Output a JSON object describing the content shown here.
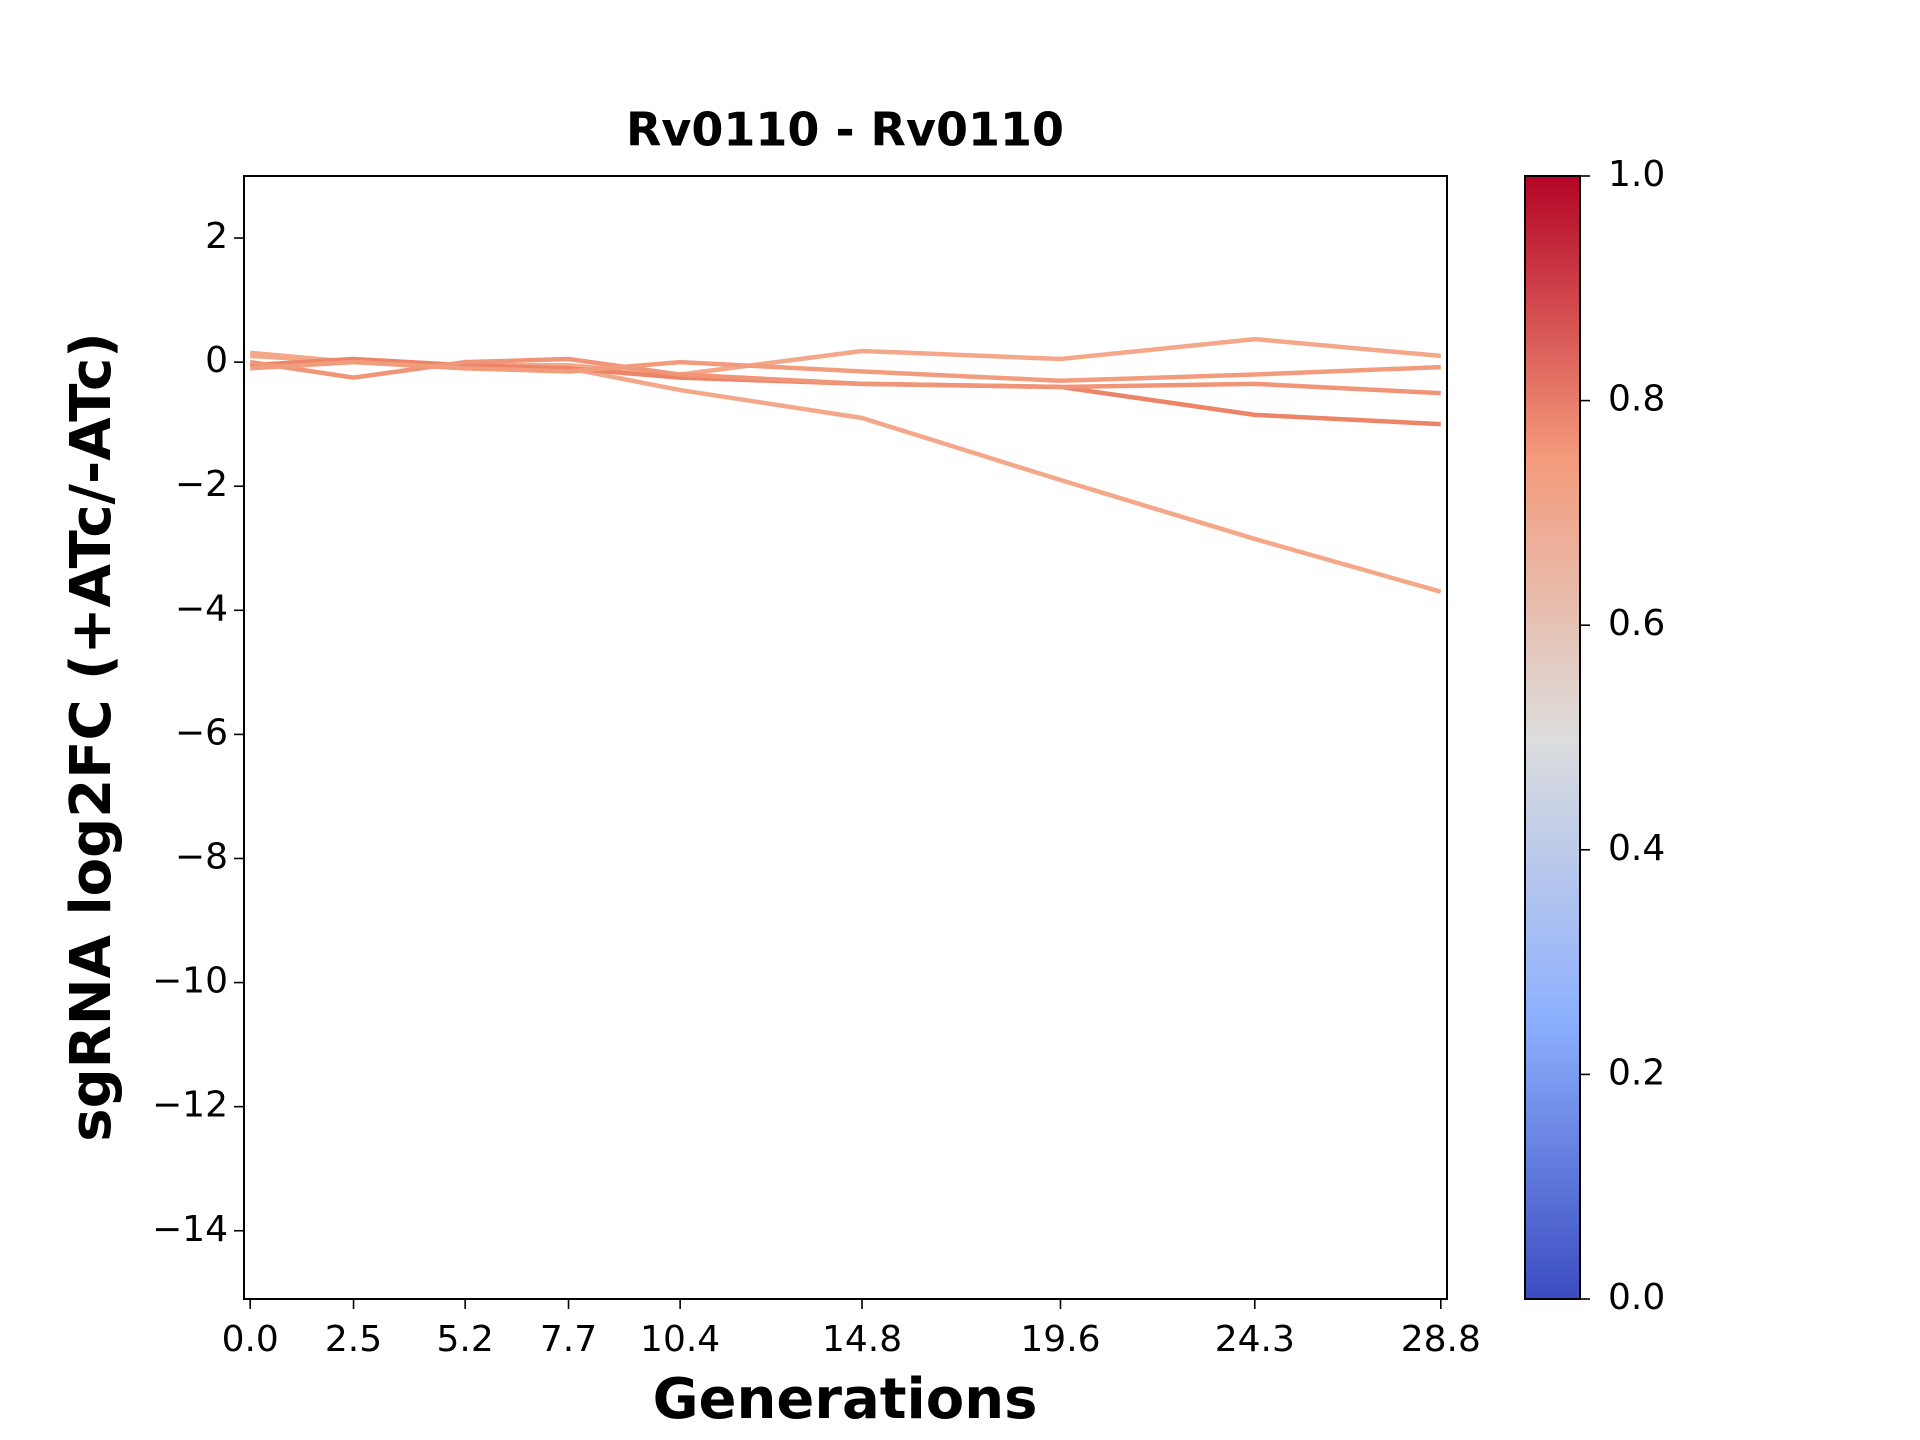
{
  "chart_data": {
    "type": "line",
    "title": "Rv0110 - Rv0110",
    "x_label": "Generations",
    "y_label": "sgRNA log2FC (+ATc/-ATc)",
    "x": [
      0,
      2.5,
      5.2,
      7.7,
      10.4,
      14.8,
      19.6,
      24.3,
      28.8
    ],
    "series": [
      {
        "color": "#f4a889",
        "values": [
          0.1,
          0.0,
          -0.05,
          -0.1,
          -0.45,
          -0.9,
          -1.9,
          -2.85,
          -3.7
        ]
      },
      {
        "color": "#f4a889",
        "values": [
          0.15,
          0.0,
          -0.05,
          -0.05,
          -0.2,
          0.18,
          0.05,
          0.37,
          0.1
        ]
      },
      {
        "color": "#ec8467",
        "values": [
          -0.05,
          0.05,
          -0.05,
          -0.1,
          -0.25,
          -0.35,
          -0.4,
          -0.85,
          -1.0
        ]
      },
      {
        "color": "#f09577",
        "values": [
          0.0,
          -0.25,
          0.0,
          0.05,
          -0.2,
          -0.35,
          -0.4,
          -0.35,
          -0.5
        ]
      },
      {
        "color": "#f29c7e",
        "values": [
          -0.1,
          0.0,
          -0.1,
          -0.15,
          0.0,
          -0.15,
          -0.3,
          -0.2,
          -0.08
        ]
      }
    ],
    "xlim": [
      -0.15,
      28.95
    ],
    "xticks": [
      {
        "value": 0,
        "label": "0.0"
      },
      2.5,
      5.2,
      7.7,
      10.4,
      14.8,
      19.6,
      24.3,
      28.8
    ],
    "ylim": [
      -15.1,
      3.0
    ],
    "yticks": [
      2,
      {
        "value": 0,
        "label": "0"
      },
      {
        "value": -2,
        "label": "−2"
      },
      {
        "value": -4,
        "label": "−4"
      },
      {
        "value": -6,
        "label": "−6"
      },
      {
        "value": -8,
        "label": "−8"
      },
      {
        "value": -10,
        "label": "−10"
      },
      {
        "value": -12,
        "label": "−12"
      },
      {
        "value": -14,
        "label": "−14"
      }
    ],
    "clim": [
      0,
      1
    ],
    "cticks": [
      {
        "value": 0,
        "label": "0.0"
      },
      0.2,
      0.4,
      0.6,
      0.8,
      {
        "value": 1,
        "label": "1.0"
      }
    ]
  }
}
